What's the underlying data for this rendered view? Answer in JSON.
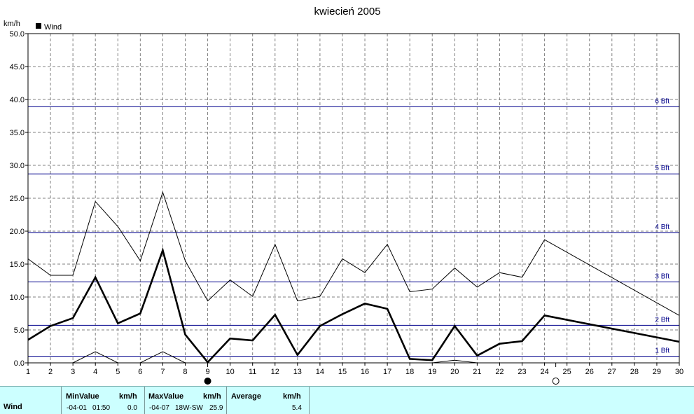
{
  "chart_data": {
    "type": "line",
    "title": "kwiecień 2005",
    "ylabel": "km/h",
    "legend": "Wind",
    "legend_position": "top-left",
    "grid": true,
    "xlim": [
      1,
      30
    ],
    "ylim": [
      0,
      50
    ],
    "x_ticks": [
      1,
      2,
      3,
      4,
      5,
      6,
      7,
      8,
      9,
      10,
      11,
      12,
      13,
      14,
      15,
      16,
      17,
      18,
      19,
      20,
      21,
      22,
      23,
      24,
      25,
      26,
      27,
      28,
      29,
      30
    ],
    "y_ticks": [
      "0.0",
      "5.0",
      "10.0",
      "15.0",
      "20.0",
      "25.0",
      "30.0",
      "35.0",
      "40.0",
      "45.0",
      "50.0"
    ],
    "series": [
      {
        "name": "max",
        "style": "thin",
        "x": [
          1,
          2,
          3,
          4,
          5,
          6,
          7,
          8,
          9,
          10,
          11,
          12,
          13,
          14,
          15,
          16,
          17,
          18,
          19,
          20,
          21,
          22,
          23,
          24,
          30
        ],
        "y": [
          15.8,
          13.3,
          13.3,
          24.5,
          20.7,
          15.5,
          25.9,
          15.5,
          9.4,
          12.6,
          10.1,
          18.0,
          9.4,
          10.1,
          15.8,
          13.7,
          18.0,
          10.8,
          11.2,
          14.4,
          11.5,
          13.7,
          13.0,
          18.7,
          7.2
        ]
      },
      {
        "name": "average",
        "style": "bold",
        "x": [
          1,
          2,
          3,
          4,
          5,
          6,
          7,
          8,
          9,
          10,
          11,
          12,
          13,
          14,
          15,
          16,
          17,
          18,
          19,
          20,
          21,
          22,
          23,
          24,
          30
        ],
        "y": [
          3.5,
          5.6,
          6.8,
          13.0,
          6.0,
          7.5,
          17.1,
          4.3,
          0.1,
          3.7,
          3.4,
          7.3,
          1.2,
          5.6,
          7.4,
          9.0,
          8.2,
          0.6,
          0.4,
          5.6,
          1.1,
          2.9,
          3.3,
          7.2,
          3.2
        ]
      },
      {
        "name": "min",
        "style": "thin",
        "x": [
          1,
          2,
          3,
          4,
          5,
          6,
          7,
          8,
          9,
          10,
          11,
          12,
          13,
          14,
          15,
          16,
          17,
          18,
          19,
          20,
          21,
          22,
          23,
          24,
          30
        ],
        "y": [
          0,
          0,
          0,
          1.7,
          0,
          0,
          1.7,
          0,
          0,
          0,
          0,
          0,
          0,
          0,
          0,
          0,
          0,
          0,
          0,
          0.4,
          0,
          0,
          0,
          0,
          0
        ]
      }
    ],
    "beaufort": [
      {
        "label": "1 Bft",
        "value": 1.0
      },
      {
        "label": "2 Bft",
        "value": 5.7
      },
      {
        "label": "3 Bft",
        "value": 12.3
      },
      {
        "label": "4 Bft",
        "value": 19.8
      },
      {
        "label": "5 Bft",
        "value": 28.7
      },
      {
        "label": "6 Bft",
        "value": 38.9
      }
    ],
    "moon_markers": [
      {
        "x": 9,
        "phase": "full"
      },
      {
        "x": 24.5,
        "phase": "new"
      }
    ],
    "colors": {
      "series": "#000000",
      "beaufort": "#00008b",
      "grid": "#808080",
      "stats_bg": "#ccffff"
    }
  },
  "stats": {
    "row_label": "Wind",
    "min_header": "MinValue",
    "min_unit": "km/h",
    "min_date": "-04-01",
    "min_time": "01:50",
    "min_value": "0.0",
    "max_header": "MaxValue",
    "max_unit": "km/h",
    "max_date": "-04-07",
    "max_dir": "18W-SW",
    "max_value": "25.9",
    "avg_header": "Average",
    "avg_unit": "km/h",
    "avg_value": "5.4"
  }
}
